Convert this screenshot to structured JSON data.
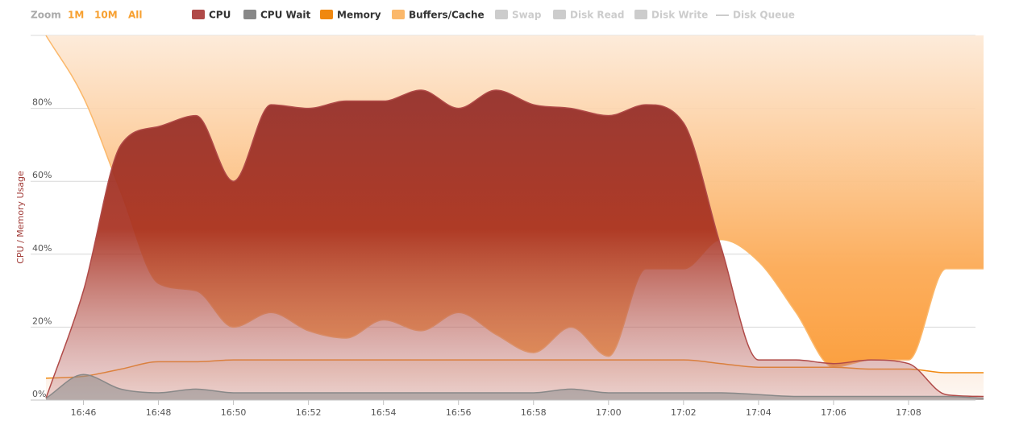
{
  "chart_data": {
    "type": "area",
    "y_axis_label": "CPU / Memory Usage",
    "range_selector": {
      "label": "Zoom",
      "buttons": [
        "1M",
        "10M",
        "All"
      ]
    },
    "x": [
      "16:45",
      "16:46",
      "16:47",
      "16:48",
      "16:49",
      "16:50",
      "16:51",
      "16:52",
      "16:53",
      "16:54",
      "16:55",
      "16:56",
      "16:57",
      "16:58",
      "16:59",
      "17:00",
      "17:01",
      "17:02",
      "17:03",
      "17:04",
      "17:05",
      "17:06",
      "17:07",
      "17:08",
      "17:09",
      "17:10"
    ],
    "series": [
      {
        "name": "Buffers/Cache",
        "color": "#fbb86b",
        "fill_to": "top",
        "values": [
          100,
          83,
          57,
          32,
          30,
          20,
          24,
          19,
          17,
          22,
          19,
          24,
          18,
          13,
          20,
          12,
          36,
          36,
          44,
          38,
          24,
          9,
          11,
          11,
          36,
          36
        ]
      },
      {
        "name": "Memory",
        "color": "#f0880f",
        "fill_to": "bottom",
        "values": [
          6,
          6.5,
          8.5,
          10.5,
          10.5,
          11,
          11,
          11,
          11,
          11,
          11,
          11,
          11,
          11,
          11,
          11,
          11,
          11,
          10,
          9,
          9,
          9,
          8.5,
          8.5,
          7.5,
          7.5
        ]
      },
      {
        "name": "CPU",
        "color": "#b04a48",
        "fill_to": "bottom",
        "values": [
          0.5,
          30,
          70,
          75,
          78,
          60,
          81,
          80,
          82,
          82,
          85,
          80,
          85,
          81,
          80,
          78,
          81,
          76,
          42,
          11,
          11,
          10,
          11,
          10,
          1.5,
          1
        ]
      },
      {
        "name": "CPU Wait",
        "color": "#888888",
        "fill_to": "bottom",
        "values": [
          0.5,
          7,
          3,
          2,
          3,
          2,
          2,
          2,
          2,
          2,
          2,
          2,
          2,
          2,
          3,
          2,
          2,
          2,
          2,
          1.5,
          1,
          1,
          1,
          1,
          1,
          0.5
        ]
      }
    ],
    "legend_order": [
      2,
      3,
      1,
      0
    ],
    "hidden_series": [
      {
        "name": "Swap",
        "symbol": "square"
      },
      {
        "name": "Disk Read",
        "symbol": "square"
      },
      {
        "name": "Disk Write",
        "symbol": "square"
      },
      {
        "name": "Disk Queue",
        "symbol": "line"
      }
    ],
    "hidden_color": "#cccccc",
    "xlim": [
      "16:45",
      "17:10"
    ],
    "xticks": [
      "16:46",
      "16:48",
      "16:50",
      "16:52",
      "16:54",
      "16:56",
      "16:58",
      "17:00",
      "17:02",
      "17:04",
      "17:06",
      "17:08"
    ],
    "ylim": [
      0,
      100
    ],
    "yticks": [
      {
        "value": 0,
        "label": "0%"
      },
      {
        "value": 20,
        "label": "20%"
      },
      {
        "value": 40,
        "label": "40%"
      },
      {
        "value": 60,
        "label": "60%"
      },
      {
        "value": 80,
        "label": "80%"
      },
      100
    ],
    "grid": true
  }
}
